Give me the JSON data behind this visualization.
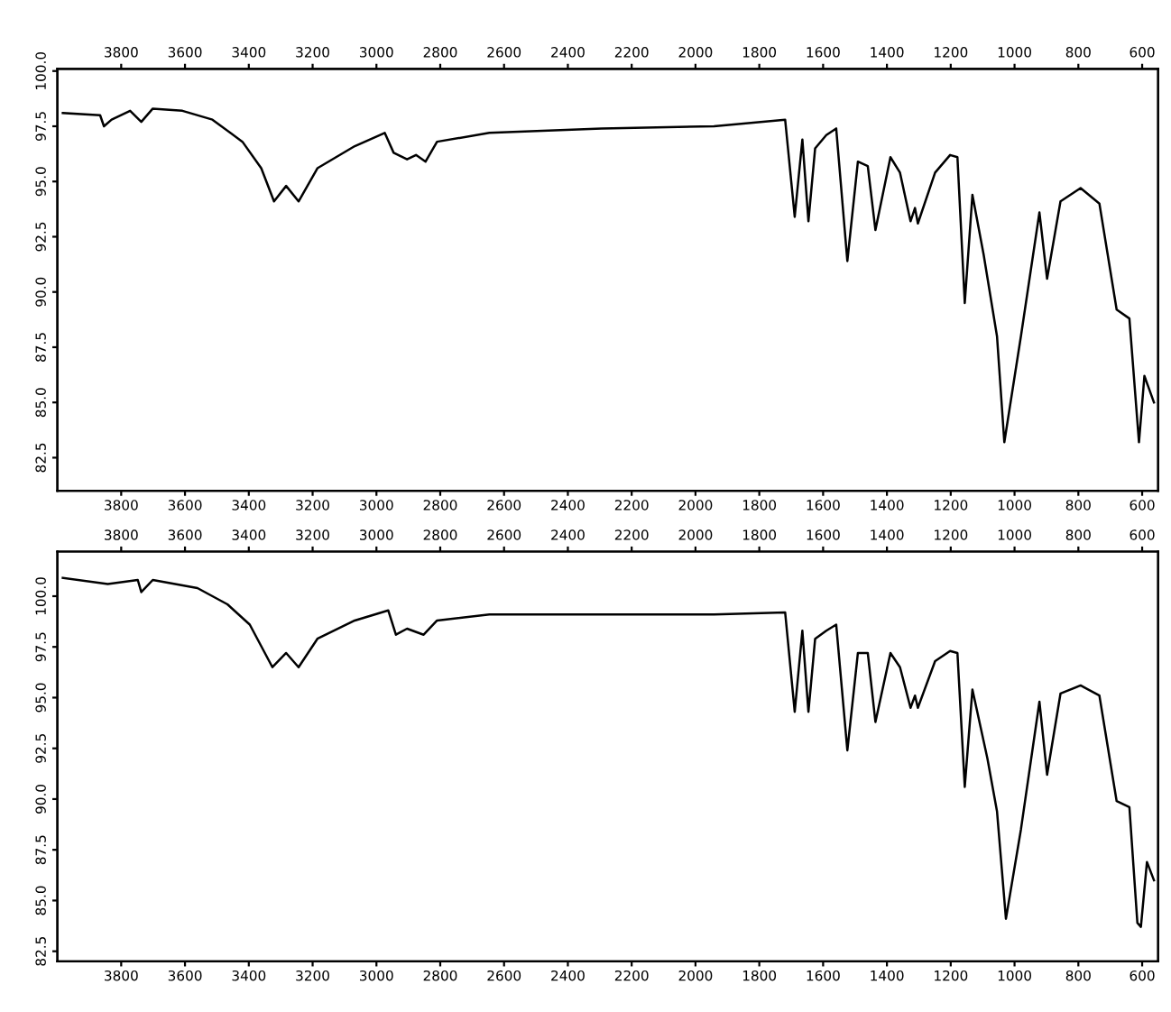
{
  "chart_data": [
    {
      "type": "line",
      "xlim": [
        4000,
        550
      ],
      "x2lim": [
        4000,
        550
      ],
      "ylim": [
        81,
        100.1
      ],
      "xticks": [
        3800,
        3600,
        3400,
        3200,
        3000,
        2800,
        2600,
        2400,
        2200,
        2000,
        1800,
        1600,
        1400,
        1200,
        1000,
        800,
        600
      ],
      "x2ticks": [
        3800,
        3600,
        3400,
        3200,
        3000,
        2800,
        2600,
        2400,
        2200,
        2000,
        1800,
        1600,
        1400,
        1200,
        1000,
        800,
        600
      ],
      "yticks": [
        {
          "value": 100,
          "label": "100.0"
        },
        {
          "value": 97.5,
          "label": "97.5"
        },
        {
          "value": 95,
          "label": "95.0"
        },
        {
          "value": 92.5,
          "label": "92.5"
        },
        {
          "value": 90,
          "label": "90.0"
        },
        {
          "value": 87.5,
          "label": "87.5"
        },
        {
          "value": 85,
          "label": "85.0"
        },
        {
          "value": 82.5,
          "label": "82.5"
        }
      ],
      "series": [
        {
          "color": "#000000",
          "x": [
            3983,
            3866,
            3854,
            3830,
            3772,
            3737,
            3701,
            3608,
            3514,
            3420,
            3361,
            3321,
            3283,
            3244,
            3185,
            3068,
            2974,
            2946,
            2904,
            2876,
            2846,
            2810,
            2646,
            2294,
            1942,
            1719,
            1689,
            1665,
            1646,
            1625,
            1590,
            1559,
            1524,
            1491,
            1460,
            1436,
            1389,
            1359,
            1326,
            1312,
            1303,
            1249,
            1202,
            1179,
            1156,
            1132,
            1097,
            1055,
            1032,
            980,
            922,
            898,
            856,
            793,
            734,
            680,
            640,
            610,
            593,
            563
          ],
          "values": [
            98.1,
            98.0,
            97.5,
            97.8,
            98.2,
            97.7,
            98.3,
            98.2,
            97.8,
            96.8,
            95.6,
            94.1,
            94.8,
            94.1,
            95.6,
            96.6,
            97.2,
            96.3,
            96.0,
            96.2,
            95.9,
            96.8,
            97.2,
            97.4,
            97.5,
            97.8,
            93.4,
            96.9,
            93.2,
            96.5,
            97.1,
            97.4,
            91.4,
            95.9,
            95.7,
            92.8,
            96.1,
            95.4,
            93.2,
            93.8,
            93.1,
            95.4,
            96.2,
            96.1,
            89.5,
            94.4,
            91.7,
            88.0,
            83.2,
            88.0,
            93.6,
            90.6,
            94.1,
            94.7,
            94.0,
            89.2,
            88.8,
            83.2,
            86.2,
            85.0
          ]
        }
      ]
    },
    {
      "type": "line",
      "xlim": [
        4000,
        550
      ],
      "x2lim": [
        4000,
        550
      ],
      "ylim": [
        82,
        102.2
      ],
      "xticks": [
        3800,
        3600,
        3400,
        3200,
        3000,
        2800,
        2600,
        2400,
        2200,
        2000,
        1800,
        1600,
        1400,
        1200,
        1000,
        800,
        600
      ],
      "x2ticks": [
        3800,
        3600,
        3400,
        3200,
        3000,
        2800,
        2600,
        2400,
        2200,
        2000,
        1800,
        1600,
        1400,
        1200,
        1000,
        800,
        600
      ],
      "yticks": [
        {
          "value": 100,
          "label": "100.0"
        },
        {
          "value": 97.5,
          "label": "97.5"
        },
        {
          "value": 95,
          "label": "95.0"
        },
        {
          "value": 92.5,
          "label": "92.5"
        },
        {
          "value": 90,
          "label": "90.0"
        },
        {
          "value": 87.5,
          "label": "87.5"
        },
        {
          "value": 85,
          "label": "85.0"
        },
        {
          "value": 82.5,
          "label": "82.5"
        }
      ],
      "series": [
        {
          "color": "#000000",
          "x": [
            3983,
            3842,
            3748,
            3737,
            3701,
            3561,
            3467,
            3397,
            3326,
            3283,
            3244,
            3185,
            3068,
            2963,
            2939,
            2904,
            2852,
            2810,
            2646,
            2294,
            1942,
            1719,
            1689,
            1665,
            1646,
            1625,
            1590,
            1559,
            1524,
            1491,
            1460,
            1436,
            1389,
            1359,
            1326,
            1312,
            1303,
            1249,
            1202,
            1179,
            1156,
            1132,
            1085,
            1055,
            1027,
            980,
            922,
            898,
            856,
            793,
            734,
            680,
            640,
            615,
            604,
            585,
            563
          ],
          "values": [
            100.9,
            100.6,
            100.8,
            100.2,
            100.8,
            100.4,
            99.6,
            98.6,
            96.5,
            97.2,
            96.5,
            97.9,
            98.8,
            99.3,
            98.1,
            98.4,
            98.1,
            98.8,
            99.1,
            99.1,
            99.1,
            99.2,
            94.3,
            98.3,
            94.3,
            97.9,
            98.3,
            98.6,
            92.4,
            97.2,
            97.2,
            93.8,
            97.2,
            96.5,
            94.5,
            95.1,
            94.5,
            96.8,
            97.3,
            97.2,
            90.6,
            95.4,
            92.0,
            89.4,
            84.1,
            88.5,
            94.8,
            91.2,
            95.2,
            95.6,
            95.1,
            89.9,
            89.6,
            83.9,
            83.7,
            86.9,
            86.0
          ]
        }
      ]
    }
  ]
}
